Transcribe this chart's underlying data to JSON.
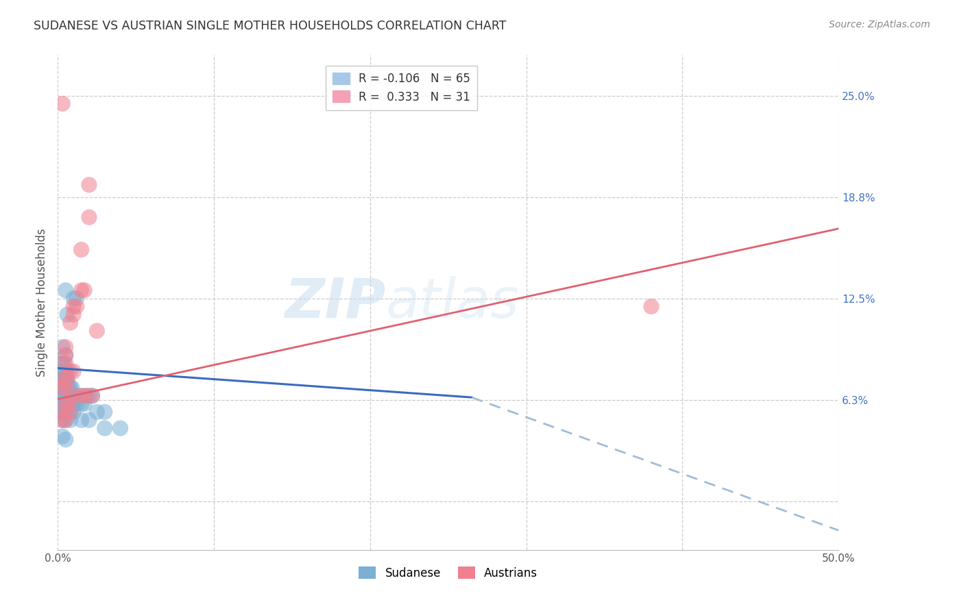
{
  "title": "SUDANESE VS AUSTRIAN SINGLE MOTHER HOUSEHOLDS CORRELATION CHART",
  "source": "Source: ZipAtlas.com",
  "ylabel": "Single Mother Households",
  "xlim": [
    0.0,
    0.5
  ],
  "ylim": [
    -0.03,
    0.275
  ],
  "xtick_vals": [
    0.0,
    0.1,
    0.2,
    0.3,
    0.4,
    0.5
  ],
  "xtick_labels": [
    "0.0%",
    "",
    "",
    "",
    "",
    "50.0%"
  ],
  "ytick_vals": [
    0.0,
    0.0625,
    0.125,
    0.1875,
    0.25
  ],
  "ytick_labels": [
    "",
    "6.3%",
    "12.5%",
    "18.8%",
    "25.0%"
  ],
  "watermark_zip": "ZIP",
  "watermark_atlas": "atlas",
  "sudanese_color": "#7bafd4",
  "austrian_color": "#f08090",
  "grid_color": "#cccccc",
  "grid_style": "--",
  "regression_blue_solid_color": "#3a6bbf",
  "regression_pink_color": "#e06070",
  "regression_blue_dash_color": "#a0bcd8",
  "blue_line": {
    "x0": 0.0,
    "y0": 0.082,
    "x1_solid": 0.265,
    "y1_solid": 0.064,
    "x1_dash": 0.5,
    "y1_dash": -0.018
  },
  "pink_line": {
    "x0": 0.0,
    "y0": 0.063,
    "x1": 0.5,
    "y1": 0.168
  },
  "sudanese_points": [
    [
      0.003,
      0.095
    ],
    [
      0.005,
      0.13
    ],
    [
      0.006,
      0.115
    ],
    [
      0.01,
      0.125
    ],
    [
      0.012,
      0.125
    ],
    [
      0.003,
      0.085
    ],
    [
      0.004,
      0.085
    ],
    [
      0.005,
      0.09
    ],
    [
      0.003,
      0.08
    ],
    [
      0.004,
      0.08
    ],
    [
      0.005,
      0.08
    ],
    [
      0.006,
      0.08
    ],
    [
      0.003,
      0.075
    ],
    [
      0.004,
      0.075
    ],
    [
      0.005,
      0.075
    ],
    [
      0.006,
      0.075
    ],
    [
      0.002,
      0.075
    ],
    [
      0.003,
      0.07
    ],
    [
      0.004,
      0.07
    ],
    [
      0.005,
      0.07
    ],
    [
      0.006,
      0.07
    ],
    [
      0.007,
      0.07
    ],
    [
      0.008,
      0.07
    ],
    [
      0.009,
      0.07
    ],
    [
      0.003,
      0.065
    ],
    [
      0.004,
      0.065
    ],
    [
      0.005,
      0.065
    ],
    [
      0.006,
      0.065
    ],
    [
      0.007,
      0.065
    ],
    [
      0.008,
      0.065
    ],
    [
      0.01,
      0.065
    ],
    [
      0.012,
      0.065
    ],
    [
      0.015,
      0.065
    ],
    [
      0.018,
      0.065
    ],
    [
      0.02,
      0.065
    ],
    [
      0.022,
      0.065
    ],
    [
      0.002,
      0.06
    ],
    [
      0.003,
      0.06
    ],
    [
      0.004,
      0.06
    ],
    [
      0.005,
      0.06
    ],
    [
      0.006,
      0.06
    ],
    [
      0.007,
      0.06
    ],
    [
      0.009,
      0.06
    ],
    [
      0.01,
      0.06
    ],
    [
      0.012,
      0.06
    ],
    [
      0.015,
      0.06
    ],
    [
      0.017,
      0.06
    ],
    [
      0.002,
      0.055
    ],
    [
      0.003,
      0.055
    ],
    [
      0.004,
      0.055
    ],
    [
      0.005,
      0.055
    ],
    [
      0.006,
      0.055
    ],
    [
      0.008,
      0.055
    ],
    [
      0.01,
      0.055
    ],
    [
      0.025,
      0.055
    ],
    [
      0.03,
      0.055
    ],
    [
      0.003,
      0.05
    ],
    [
      0.005,
      0.05
    ],
    [
      0.008,
      0.05
    ],
    [
      0.015,
      0.05
    ],
    [
      0.02,
      0.05
    ],
    [
      0.03,
      0.045
    ],
    [
      0.04,
      0.045
    ],
    [
      0.003,
      0.04
    ],
    [
      0.005,
      0.038
    ]
  ],
  "austrian_points": [
    [
      0.003,
      0.245
    ],
    [
      0.02,
      0.195
    ],
    [
      0.02,
      0.175
    ],
    [
      0.015,
      0.155
    ],
    [
      0.015,
      0.13
    ],
    [
      0.017,
      0.13
    ],
    [
      0.01,
      0.12
    ],
    [
      0.012,
      0.12
    ],
    [
      0.01,
      0.115
    ],
    [
      0.008,
      0.11
    ],
    [
      0.025,
      0.105
    ],
    [
      0.005,
      0.095
    ],
    [
      0.005,
      0.09
    ],
    [
      0.005,
      0.085
    ],
    [
      0.008,
      0.08
    ],
    [
      0.01,
      0.08
    ],
    [
      0.003,
      0.075
    ],
    [
      0.006,
      0.075
    ],
    [
      0.003,
      0.07
    ],
    [
      0.005,
      0.07
    ],
    [
      0.01,
      0.065
    ],
    [
      0.015,
      0.065
    ],
    [
      0.018,
      0.065
    ],
    [
      0.022,
      0.065
    ],
    [
      0.005,
      0.06
    ],
    [
      0.007,
      0.06
    ],
    [
      0.004,
      0.055
    ],
    [
      0.008,
      0.055
    ],
    [
      0.003,
      0.05
    ],
    [
      0.005,
      0.05
    ],
    [
      0.38,
      0.12
    ]
  ]
}
